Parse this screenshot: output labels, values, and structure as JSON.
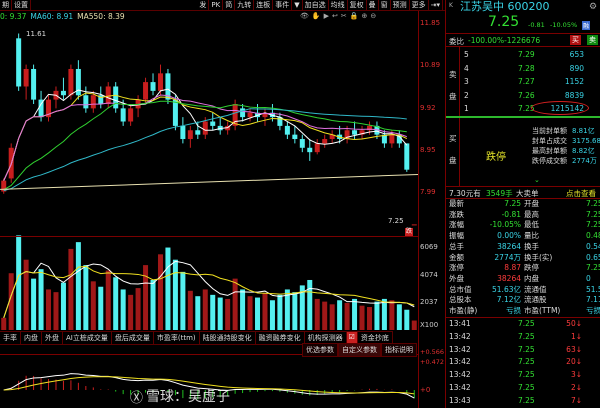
{
  "toolbar": {
    "left": [
      "期",
      "设置"
    ],
    "right": [
      "发",
      "PK",
      "简",
      "九转",
      "连板",
      "事件",
      "▼",
      "加自选",
      "均线",
      "复权",
      "叠",
      "窗",
      "预测",
      "更多",
      "⇥▾"
    ]
  },
  "ma_legend": [
    {
      "text": "0: 9.37",
      "color": "#33e033"
    },
    {
      "text": "MA60: 8.91",
      "color": "#3ad4e6"
    },
    {
      "text": "MA550: 8.39",
      "color": "#e8e0b0"
    }
  ],
  "chart_icons": [
    "👁",
    "✋",
    "▶",
    "↩",
    "✂",
    "🔒",
    "⊕",
    "⊖"
  ],
  "price_axis": [
    "11.85",
    "10.89",
    "9.92",
    "8.95",
    "7.99"
  ],
  "volume_axis": [
    "6069",
    "4074",
    "2037",
    "X100"
  ],
  "macd_axis": [
    "+0.566",
    "+0.472",
    "+0"
  ],
  "annotations": {
    "high": "11.61",
    "last": "7.25",
    "marker": "跌"
  },
  "tabs": [
    "手率",
    "内盘",
    "外盘",
    "AI立桩成交量",
    "盘后成交量",
    "市盈率(ttm)",
    "陆股通持股变化",
    "融资融券变化",
    "机构探测器",
    "资金抄底"
  ],
  "tabs2": [
    "优选参数",
    "自定义参数",
    "指标说明"
  ],
  "quote": {
    "k": "K",
    "name": "江苏吴中 600200",
    "price": "7.25",
    "change": "-0.81",
    "pct": "-10.05%",
    "badge": "融",
    "weibi_label": "委比",
    "weibi": "-100.00%-1226676",
    "buy": "买",
    "sell": "卖",
    "sell_side": "卖盘",
    "buy_side": "买盘"
  },
  "asks": [
    {
      "n": "5",
      "p": "7.29",
      "v": "653"
    },
    {
      "n": "4",
      "p": "7.28",
      "v": "890"
    },
    {
      "n": "3",
      "p": "7.27",
      "v": "1152"
    },
    {
      "n": "2",
      "p": "7.26",
      "v": "8839"
    },
    {
      "n": "1",
      "p": "7.25",
      "v": "1215142"
    }
  ],
  "limit": {
    "label": "跌停",
    "stats": [
      [
        "当前封单额",
        "8.81亿"
      ],
      [
        "封单占成交",
        "3175.685"
      ],
      [
        "最高封单额",
        "8.82亿"
      ],
      [
        "跌停成交额",
        "2774万"
      ]
    ]
  },
  "bigorder": {
    "a": "7.30元有",
    "b": "3549手",
    "c": "大卖单",
    "d": "点击查看"
  },
  "stats": [
    [
      "最新",
      "7.25",
      "开盘",
      "7.25"
    ],
    [
      "涨跌",
      "-0.81",
      "最高",
      "7.25"
    ],
    [
      "涨幅",
      "-10.05%",
      "最低",
      "7.25"
    ],
    [
      "振幅",
      "0.00%",
      "量比",
      "0.48"
    ],
    [
      "总手",
      "38264",
      "换手",
      "0.54%"
    ],
    [
      "金额",
      "2774万",
      "换手(实)",
      "0.65%"
    ],
    [
      "涨停",
      "8.87",
      "跌停",
      "7.25"
    ],
    [
      "外盘",
      "38264",
      "内盘",
      "0"
    ],
    [
      "总市值",
      "51.63亿",
      "流通值",
      "51.54亿"
    ],
    [
      "总股本",
      "7.12亿",
      "流通股",
      "7.11亿"
    ],
    [
      "市盈(静)",
      "亏损",
      "市盈(TTM)",
      "亏损"
    ]
  ],
  "trades": [
    [
      "13:41",
      "7.25",
      "50↓"
    ],
    [
      "13:42",
      "7.25",
      "1↓"
    ],
    [
      "13:42",
      "7.25",
      "63↓"
    ],
    [
      "13:42",
      "7.25",
      "20↓"
    ],
    [
      "13:42",
      "7.25",
      "3↓"
    ],
    [
      "13:42",
      "7.25",
      "2↓"
    ],
    [
      "13:43",
      "7.25",
      "7↓"
    ]
  ],
  "watermark": "雪球：吴虚子",
  "colors": {
    "up": "#c81e1e",
    "down": "#54f0f0",
    "grid": "#7a0000"
  },
  "chart_data": {
    "type": "candlestick",
    "ylim": [
      7.25,
      11.85
    ],
    "ohlc": [
      [
        8.0,
        8.3,
        7.95,
        8.25
      ],
      [
        8.3,
        9.1,
        8.2,
        9.0
      ],
      [
        11.5,
        11.61,
        10.3,
        10.4
      ],
      [
        10.4,
        10.9,
        10.1,
        10.8
      ],
      [
        10.8,
        10.9,
        10.0,
        10.1
      ],
      [
        10.1,
        10.3,
        9.6,
        9.7
      ],
      [
        9.7,
        10.2,
        9.6,
        10.1
      ],
      [
        10.1,
        10.4,
        9.9,
        10.3
      ],
      [
        10.3,
        10.6,
        10.1,
        10.2
      ],
      [
        10.2,
        10.9,
        10.1,
        10.8
      ],
      [
        10.8,
        11.0,
        10.1,
        10.2
      ],
      [
        10.2,
        10.4,
        9.8,
        9.9
      ],
      [
        9.9,
        10.3,
        9.8,
        10.2
      ],
      [
        10.2,
        10.4,
        9.9,
        10.0
      ],
      [
        10.0,
        10.5,
        9.9,
        10.4
      ],
      [
        10.4,
        10.5,
        9.8,
        9.9
      ],
      [
        9.9,
        10.1,
        9.5,
        9.6
      ],
      [
        9.6,
        10.0,
        9.5,
        9.9
      ],
      [
        9.9,
        10.2,
        9.7,
        10.1
      ],
      [
        10.1,
        10.6,
        10.0,
        10.5
      ],
      [
        10.5,
        10.7,
        10.2,
        10.3
      ],
      [
        10.3,
        10.9,
        10.2,
        10.7
      ],
      [
        10.7,
        10.8,
        10.0,
        10.1
      ],
      [
        10.1,
        10.2,
        9.4,
        9.5
      ],
      [
        9.5,
        9.7,
        9.1,
        9.2
      ],
      [
        9.2,
        9.5,
        9.0,
        9.4
      ],
      [
        9.4,
        9.6,
        9.2,
        9.3
      ],
      [
        9.3,
        9.7,
        9.2,
        9.6
      ],
      [
        9.6,
        9.8,
        9.4,
        9.5
      ],
      [
        9.5,
        9.7,
        9.3,
        9.4
      ],
      [
        9.4,
        9.6,
        9.3,
        9.5
      ],
      [
        9.5,
        10.1,
        9.4,
        10.0
      ],
      [
        9.9,
        10.0,
        9.6,
        9.7
      ],
      [
        9.7,
        9.9,
        9.6,
        9.8
      ],
      [
        9.8,
        10.0,
        9.6,
        9.7
      ],
      [
        9.7,
        9.9,
        9.5,
        9.8
      ],
      [
        9.8,
        10.0,
        9.6,
        9.7
      ],
      [
        9.7,
        9.8,
        9.4,
        9.5
      ],
      [
        9.5,
        9.6,
        9.2,
        9.3
      ],
      [
        9.3,
        9.5,
        9.1,
        9.2
      ],
      [
        9.2,
        9.3,
        8.9,
        9.0
      ],
      [
        9.0,
        9.2,
        8.7,
        8.9
      ],
      [
        8.9,
        9.2,
        8.85,
        9.1
      ],
      [
        9.1,
        9.3,
        9.0,
        9.2
      ],
      [
        9.2,
        9.4,
        9.1,
        9.3
      ],
      [
        9.3,
        9.5,
        9.1,
        9.2
      ],
      [
        9.2,
        9.5,
        9.1,
        9.4
      ],
      [
        9.4,
        9.6,
        9.2,
        9.3
      ],
      [
        9.3,
        9.5,
        9.2,
        9.4
      ],
      [
        9.4,
        9.6,
        9.3,
        9.5
      ],
      [
        9.5,
        9.6,
        9.2,
        9.3
      ],
      [
        9.3,
        9.4,
        9.0,
        9.1
      ],
      [
        9.1,
        9.4,
        9.0,
        9.3
      ],
      [
        9.3,
        9.4,
        9.0,
        9.1
      ],
      [
        9.1,
        9.1,
        8.45,
        8.5
      ],
      [
        7.25,
        7.25,
        7.25,
        7.25
      ]
    ],
    "volume": [
      900,
      4200,
      7000,
      5200,
      3800,
      4500,
      3000,
      2800,
      3500,
      6000,
      6500,
      4800,
      3600,
      3200,
      4400,
      3900,
      3000,
      2600,
      3100,
      4800,
      3700,
      5600,
      6100,
      5200,
      4300,
      2900,
      2500,
      3000,
      2600,
      2400,
      2300,
      3800,
      3000,
      2500,
      2400,
      2700,
      2200,
      2600,
      3000,
      2800,
      3300,
      3700,
      2300,
      2100,
      1900,
      2200,
      2000,
      2300,
      1800,
      1700,
      2100,
      2300,
      2200,
      1900,
      1500,
      700
    ],
    "volume_ylim": [
      0,
      7250
    ],
    "ma550": [
      8.05,
      8.39
    ]
  }
}
